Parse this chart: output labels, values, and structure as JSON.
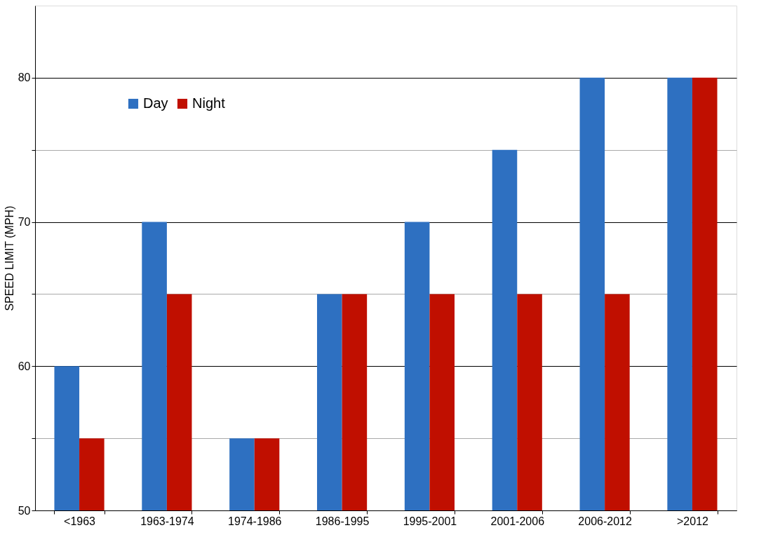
{
  "chart_data": {
    "type": "bar",
    "ylabel": "SPEED LIMIT (MPH)",
    "categories": [
      "<1963",
      "1963-1974",
      "1974-1986",
      "1986-1995",
      "1995-2001",
      "2001-2006",
      "2006-2012",
      ">2012"
    ],
    "series": [
      {
        "name": "Day",
        "color": "#2e70c1",
        "values": [
          60,
          70,
          55,
          65,
          70,
          75,
          80,
          80
        ]
      },
      {
        "name": "Night",
        "color": "#c00f00",
        "values": [
          55,
          65,
          55,
          65,
          65,
          65,
          65,
          80
        ]
      }
    ],
    "ylim": [
      50,
      85
    ],
    "yticks": [
      50,
      {
        "value": 55,
        "label": null
      },
      60,
      {
        "value": 65,
        "label": null
      },
      70,
      {
        "value": 75,
        "label": null
      },
      80
    ],
    "grid": "y",
    "legend": "top left"
  }
}
